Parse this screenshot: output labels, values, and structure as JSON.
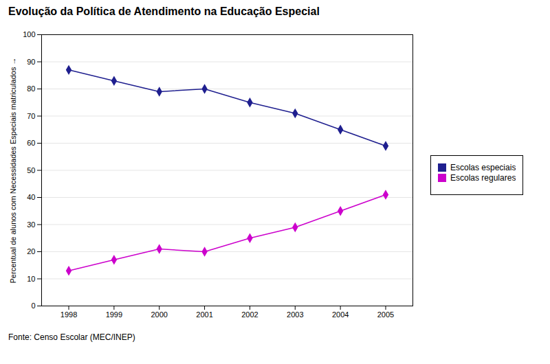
{
  "chart_data": {
    "type": "line",
    "title": "Evolução da Política de Atendimento na Educação Especial",
    "ylabel": "Percentual de alunos com Necessidades Especiais matriculados",
    "caption": "Fonte: Censo Escolar (MEC/INEP)",
    "x": [
      1998,
      1999,
      2000,
      2001,
      2002,
      2003,
      2004,
      2005
    ],
    "series": [
      {
        "name": "Escolas especiais",
        "color": "#1f1f8f",
        "marker": "diamond",
        "values": [
          87,
          83,
          79,
          80,
          75,
          71,
          65,
          59
        ]
      },
      {
        "name": "Escolas regulares",
        "color": "#cc00cc",
        "marker": "diamond",
        "values": [
          13,
          17,
          21,
          20,
          25,
          29,
          35,
          41
        ]
      }
    ],
    "xlim": [
      1997.4,
      2005.6
    ],
    "xticks": [
      1998,
      1999,
      2000,
      2001,
      2002,
      2003,
      2004,
      2005
    ],
    "ylim": [
      0,
      100
    ],
    "yticks": [
      0,
      10,
      20,
      30,
      40,
      50,
      60,
      70,
      80,
      90,
      100
    ],
    "grid": "y",
    "legend": "right"
  }
}
